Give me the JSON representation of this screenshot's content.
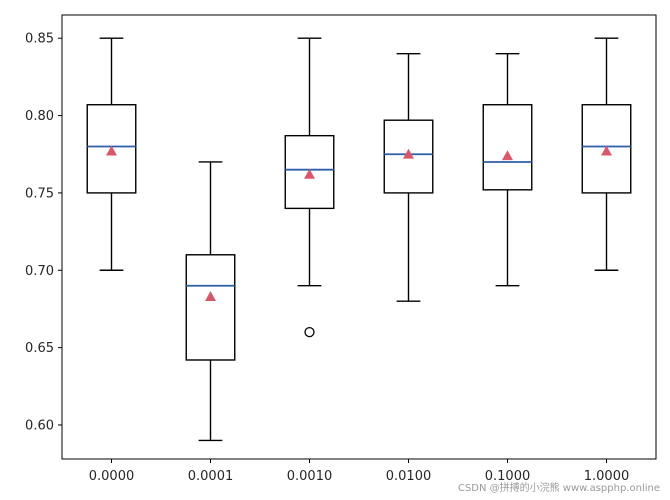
{
  "chart_data": {
    "type": "boxplot",
    "title": "",
    "xlabel": "",
    "ylabel": "",
    "ylim": [
      0.578,
      0.865
    ],
    "yticks": [
      "0.60",
      "0.65",
      "0.70",
      "0.75",
      "0.80",
      "0.85"
    ],
    "grid": false,
    "legend": "none",
    "categories": [
      "0.0000",
      "0.0001",
      "0.0010",
      "0.0100",
      "0.1000",
      "1.0000"
    ],
    "boxes": [
      {
        "category": "0.0000",
        "whisker_low": 0.7,
        "q1": 0.75,
        "median": 0.78,
        "q3": 0.807,
        "whisker_high": 0.85,
        "mean": 0.777,
        "outliers": []
      },
      {
        "category": "0.0001",
        "whisker_low": 0.59,
        "q1": 0.642,
        "median": 0.69,
        "q3": 0.71,
        "whisker_high": 0.77,
        "mean": 0.683,
        "outliers": []
      },
      {
        "category": "0.0010",
        "whisker_low": 0.69,
        "q1": 0.74,
        "median": 0.765,
        "q3": 0.787,
        "whisker_high": 0.85,
        "mean": 0.762,
        "outliers": [
          0.66
        ]
      },
      {
        "category": "0.0100",
        "whisker_low": 0.68,
        "q1": 0.75,
        "median": 0.775,
        "q3": 0.797,
        "whisker_high": 0.84,
        "mean": 0.775,
        "outliers": []
      },
      {
        "category": "0.1000",
        "whisker_low": 0.69,
        "q1": 0.752,
        "median": 0.77,
        "q3": 0.807,
        "whisker_high": 0.84,
        "mean": 0.774,
        "outliers": []
      },
      {
        "category": "1.0000",
        "whisker_low": 0.7,
        "q1": 0.75,
        "median": 0.78,
        "q3": 0.807,
        "whisker_high": 0.85,
        "mean": 0.777,
        "outliers": []
      }
    ],
    "colors": {
      "box": "#000000",
      "median": "#2f5ea8",
      "mean": "#d9576b",
      "outlier": "#000000"
    }
  },
  "watermark": "CSDN @拼搏的小浣熊 www.aspphp.online"
}
